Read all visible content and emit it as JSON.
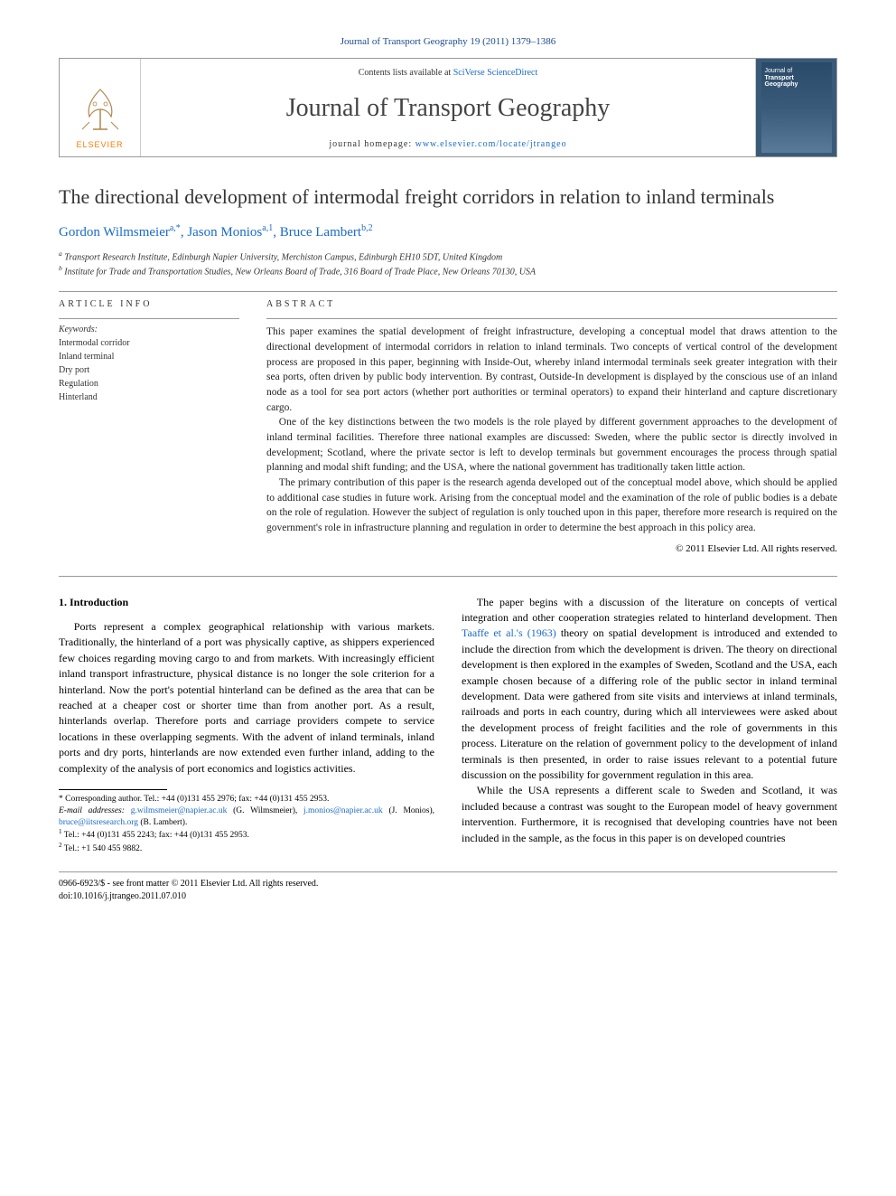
{
  "colors": {
    "link": "#1a6bc7",
    "header_blue": "#1a4b8c",
    "elsevier_orange": "#ff7a00",
    "text": "#000000",
    "rule": "#999999"
  },
  "typography": {
    "body_family": "Georgia, 'Times New Roman', serif",
    "title_size_pt": 22,
    "journal_name_size_pt": 28,
    "body_size_pt": 12,
    "abstract_size_pt": 11.5,
    "footnote_size_pt": 9.5
  },
  "running_header": "Journal of Transport Geography 19 (2011) 1379–1386",
  "masthead": {
    "publisher_label": "ELSEVIER",
    "contents_prefix": "Contents lists available at ",
    "contents_link": "SciVerse ScienceDirect",
    "journal_name": "Journal of Transport Geography",
    "homepage_prefix": "journal homepage: ",
    "homepage_url": "www.elsevier.com/locate/jtrangeo",
    "cover_caption_top": "Journal of",
    "cover_caption_bottom": "Transport Geography"
  },
  "article": {
    "title": "The directional development of intermodal freight corridors in relation to inland terminals",
    "authors_html": "Gordon Wilmsmeier",
    "authors": [
      {
        "name": "Gordon Wilmsmeier",
        "marks": "a,*"
      },
      {
        "name": "Jason Monios",
        "marks": "a,1"
      },
      {
        "name": "Bruce Lambert",
        "marks": "b,2"
      }
    ],
    "affiliations": [
      "Transport Research Institute, Edinburgh Napier University, Merchiston Campus, Edinburgh EH10 5DT, United Kingdom",
      "Institute for Trade and Transportation Studies, New Orleans Board of Trade, 316 Board of Trade Place, New Orleans 70130, USA"
    ],
    "aff_marks": [
      "a",
      "b"
    ]
  },
  "info": {
    "label": "ARTICLE INFO",
    "keywords_label": "Keywords:",
    "keywords": [
      "Intermodal corridor",
      "Inland terminal",
      "Dry port",
      "Regulation",
      "Hinterland"
    ]
  },
  "abstract": {
    "label": "ABSTRACT",
    "paragraphs": [
      "This paper examines the spatial development of freight infrastructure, developing a conceptual model that draws attention to the directional development of intermodal corridors in relation to inland terminals. Two concepts of vertical control of the development process are proposed in this paper, beginning with Inside-Out, whereby inland intermodal terminals seek greater integration with their sea ports, often driven by public body intervention. By contrast, Outside-In development is displayed by the conscious use of an inland node as a tool for sea port actors (whether port authorities or terminal operators) to expand their hinterland and capture discretionary cargo.",
      "One of the key distinctions between the two models is the role played by different government approaches to the development of inland terminal facilities. Therefore three national examples are discussed: Sweden, where the public sector is directly involved in development; Scotland, where the private sector is left to develop terminals but government encourages the process through spatial planning and modal shift funding; and the USA, where the national government has traditionally taken little action.",
      "The primary contribution of this paper is the research agenda developed out of the conceptual model above, which should be applied to additional case studies in future work. Arising from the conceptual model and the examination of the role of public bodies is a debate on the role of regulation. However the subject of regulation is only touched upon in this paper, therefore more research is required on the government's role in infrastructure planning and regulation in order to determine the best approach in this policy area."
    ],
    "copyright": "© 2011 Elsevier Ltd. All rights reserved."
  },
  "body": {
    "heading": "1. Introduction",
    "left_paragraphs": [
      "Ports represent a complex geographical relationship with various markets. Traditionally, the hinterland of a port was physically captive, as shippers experienced few choices regarding moving cargo to and from markets. With increasingly efficient inland transport infrastructure, physical distance is no longer the sole criterion for a hinterland. Now the port's potential hinterland can be defined as the area that can be reached at a cheaper cost or shorter time than from another port. As a result, hinterlands overlap. Therefore ports and carriage providers compete to service locations in these overlapping segments. With the advent of inland terminals, inland ports and dry ports, hinterlands are now extended even further inland, adding to the complexity of the analysis of port economics and logistics activities."
    ],
    "right_paragraphs": [
      "The paper begins with a discussion of the literature on concepts of vertical integration and other cooperation strategies related to hinterland development. Then {{REF}} theory on spatial development is introduced and extended to include the direction from which the development is driven. The theory on directional development is then explored in the examples of Sweden, Scotland and the USA, each example chosen because of a differing role of the public sector in inland terminal development. Data were gathered from site visits and interviews at inland terminals, railroads and ports in each country, during which all interviewees were asked about the development process of freight facilities and the role of governments in this process. Literature on the relation of government policy to the development of inland terminals is then presented, in order to raise issues relevant to a potential future discussion on the possibility for government regulation in this area.",
      "While the USA represents a different scale to Sweden and Scotland, it was included because a contrast was sought to the European model of heavy government intervention. Furthermore, it is recognised that developing countries have not been included in the sample, as the focus in this paper is on developed countries"
    ],
    "inline_ref": "Taaffe et al.'s (1963)"
  },
  "footnotes": {
    "corr_label": "* Corresponding author. Tel.: +44 (0)131 455 2976; fax: +44 (0)131 455 2953.",
    "email_label": "E-mail addresses:",
    "emails": [
      {
        "addr": "g.wilmsmeier@napier.ac.uk",
        "who": "(G. Wilmsmeier)"
      },
      {
        "addr": "j.monios@napier.ac.uk",
        "who": "(J. Monios)"
      },
      {
        "addr": "bruce@iitsresearch.org",
        "who": "(B. Lambert)"
      }
    ],
    "notes": [
      "Tel.: +44 (0)131 455 2243; fax: +44 (0)131 455 2953.",
      "Tel.: +1 540 455 9882."
    ],
    "note_marks": [
      "1",
      "2"
    ]
  },
  "bottom": {
    "issn_line": "0966-6923/$ - see front matter © 2011 Elsevier Ltd. All rights reserved.",
    "doi_line": "doi:10.1016/j.jtrangeo.2011.07.010"
  }
}
